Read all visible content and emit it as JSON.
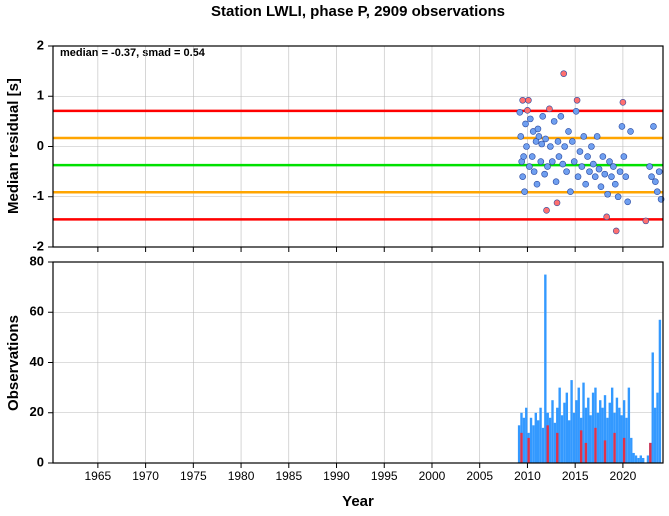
{
  "chart_data": [
    {
      "type": "scatter",
      "title": "Station LWLI, phase P, 2909 observations",
      "annotation": "median = -0.37, smad = 0.54",
      "ylabel": "Median residual [s]",
      "xlim": [
        1960.3,
        2024.2
      ],
      "xticks": [
        1965,
        1970,
        1975,
        1980,
        1985,
        1990,
        1995,
        2000,
        2005,
        2010,
        2015,
        2020
      ],
      "ylim": [
        -2,
        2
      ],
      "yticks": [
        -2,
        -1,
        0,
        1,
        2
      ],
      "grid": true,
      "hlines": [
        {
          "value": 0.71,
          "color": "#ff0000"
        },
        {
          "value": 0.17,
          "color": "#ffa500"
        },
        {
          "value": -0.37,
          "color": "#00e000"
        },
        {
          "value": -0.91,
          "color": "#ffa500"
        },
        {
          "value": -1.45,
          "color": "#ff0000"
        }
      ],
      "points": {
        "color": "#6f9ff0",
        "x": [
          2009.2,
          2009.3,
          2009.4,
          2009.5,
          2009.6,
          2009.7,
          2009.8,
          2009.9,
          2010.2,
          2010.3,
          2010.5,
          2010.6,
          2010.7,
          2010.9,
          2011.0,
          2011.1,
          2011.2,
          2011.4,
          2011.5,
          2011.6,
          2011.8,
          2011.9,
          2012.1,
          2012.4,
          2012.6,
          2012.8,
          2013.0,
          2013.2,
          2013.3,
          2013.5,
          2013.7,
          2013.9,
          2014.1,
          2014.3,
          2014.5,
          2014.7,
          2014.9,
          2015.1,
          2015.3,
          2015.5,
          2015.7,
          2015.9,
          2016.1,
          2016.3,
          2016.5,
          2016.7,
          2016.9,
          2017.1,
          2017.3,
          2017.5,
          2017.7,
          2017.9,
          2018.1,
          2018.4,
          2018.6,
          2018.8,
          2019.0,
          2019.2,
          2019.5,
          2019.7,
          2019.9,
          2020.1,
          2020.3,
          2020.5,
          2020.8,
          2022.8,
          2023.0,
          2023.2,
          2023.4,
          2023.6,
          2023.8,
          2024.0
        ],
        "y": [
          0.68,
          0.2,
          -0.3,
          -0.6,
          -0.2,
          -0.9,
          0.45,
          0.0,
          -0.4,
          0.55,
          -0.2,
          0.3,
          -0.5,
          0.1,
          -0.75,
          0.35,
          0.2,
          -0.3,
          0.05,
          0.6,
          -0.55,
          0.15,
          -0.4,
          0.0,
          -0.3,
          0.5,
          -0.7,
          0.1,
          -0.2,
          0.6,
          -0.35,
          0.0,
          -0.5,
          0.3,
          -0.9,
          0.1,
          -0.3,
          0.7,
          -0.6,
          -0.1,
          -0.4,
          0.2,
          -0.75,
          -0.2,
          -0.5,
          0.0,
          -0.35,
          -0.6,
          0.2,
          -0.45,
          -0.8,
          -0.2,
          -0.55,
          -0.95,
          -0.3,
          -0.6,
          -0.4,
          -0.75,
          -1.0,
          -0.5,
          0.4,
          -0.2,
          -0.6,
          -1.1,
          0.3,
          -0.4,
          -0.6,
          0.4,
          -0.7,
          -0.9,
          -0.5,
          -1.05
        ]
      },
      "outliers": {
        "color": "#ff6f6f",
        "x": [
          2009.5,
          2010.1,
          2012.3,
          2013.8,
          2015.2,
          2020.0,
          2012.0,
          2013.1,
          2018.3,
          2019.3,
          2022.4,
          2010.0
        ],
        "y": [
          0.92,
          0.92,
          0.75,
          1.45,
          0.92,
          0.88,
          -1.27,
          -1.12,
          -1.4,
          -1.68,
          -1.48,
          0.72
        ]
      }
    },
    {
      "type": "histogram",
      "ylabel": "Observations",
      "xlabel": "Year",
      "xlim": [
        1960.3,
        2024.2
      ],
      "xticks": [
        1965,
        1970,
        1975,
        1980,
        1985,
        1990,
        1995,
        2000,
        2005,
        2010,
        2015,
        2020
      ],
      "ylim": [
        0,
        80
      ],
      "yticks": [
        0,
        20,
        40,
        60,
        80
      ],
      "grid": true,
      "bins": [
        2009,
        2009.25,
        2009.5,
        2009.75,
        2010,
        2010.25,
        2010.5,
        2010.75,
        2011,
        2011.25,
        2011.5,
        2011.75,
        2012,
        2012.25,
        2012.5,
        2012.75,
        2013,
        2013.25,
        2013.5,
        2013.75,
        2014,
        2014.25,
        2014.5,
        2014.75,
        2015,
        2015.25,
        2015.5,
        2015.75,
        2016,
        2016.25,
        2016.5,
        2016.75,
        2017,
        2017.25,
        2017.5,
        2017.75,
        2018,
        2018.25,
        2018.5,
        2018.75,
        2019,
        2019.25,
        2019.5,
        2019.75,
        2020,
        2020.25,
        2020.5,
        2020.75,
        2021,
        2021.25,
        2021.5,
        2021.75,
        2022,
        2022.25,
        2022.5,
        2022.75,
        2023,
        2023.25,
        2023.5,
        2023.75,
        2024
      ],
      "series": [
        {
          "color": "#3399ff",
          "values": [
            15,
            20,
            18,
            22,
            12,
            18,
            15,
            20,
            17,
            22,
            14,
            75,
            20,
            18,
            25,
            16,
            22,
            30,
            19,
            24,
            28,
            17,
            33,
            20,
            25,
            30,
            18,
            32,
            22,
            26,
            19,
            28,
            30,
            20,
            25,
            22,
            27,
            18,
            24,
            30,
            20,
            26,
            22,
            19,
            25,
            18,
            30,
            10,
            4,
            3,
            2,
            3,
            2,
            0,
            3,
            8,
            44,
            22,
            28,
            57
          ]
        },
        {
          "color": "#e0314a",
          "values": [
            0,
            12,
            0,
            0,
            10,
            0,
            0,
            0,
            0,
            0,
            0,
            0,
            15,
            0,
            0,
            0,
            12,
            0,
            0,
            0,
            0,
            0,
            0,
            0,
            0,
            0,
            13,
            0,
            8,
            0,
            0,
            0,
            14,
            0,
            0,
            0,
            9,
            0,
            0,
            0,
            12,
            0,
            0,
            0,
            10,
            0,
            0,
            0,
            0,
            0,
            0,
            0,
            0,
            0,
            0,
            8,
            0,
            0,
            0,
            0
          ]
        }
      ]
    }
  ]
}
